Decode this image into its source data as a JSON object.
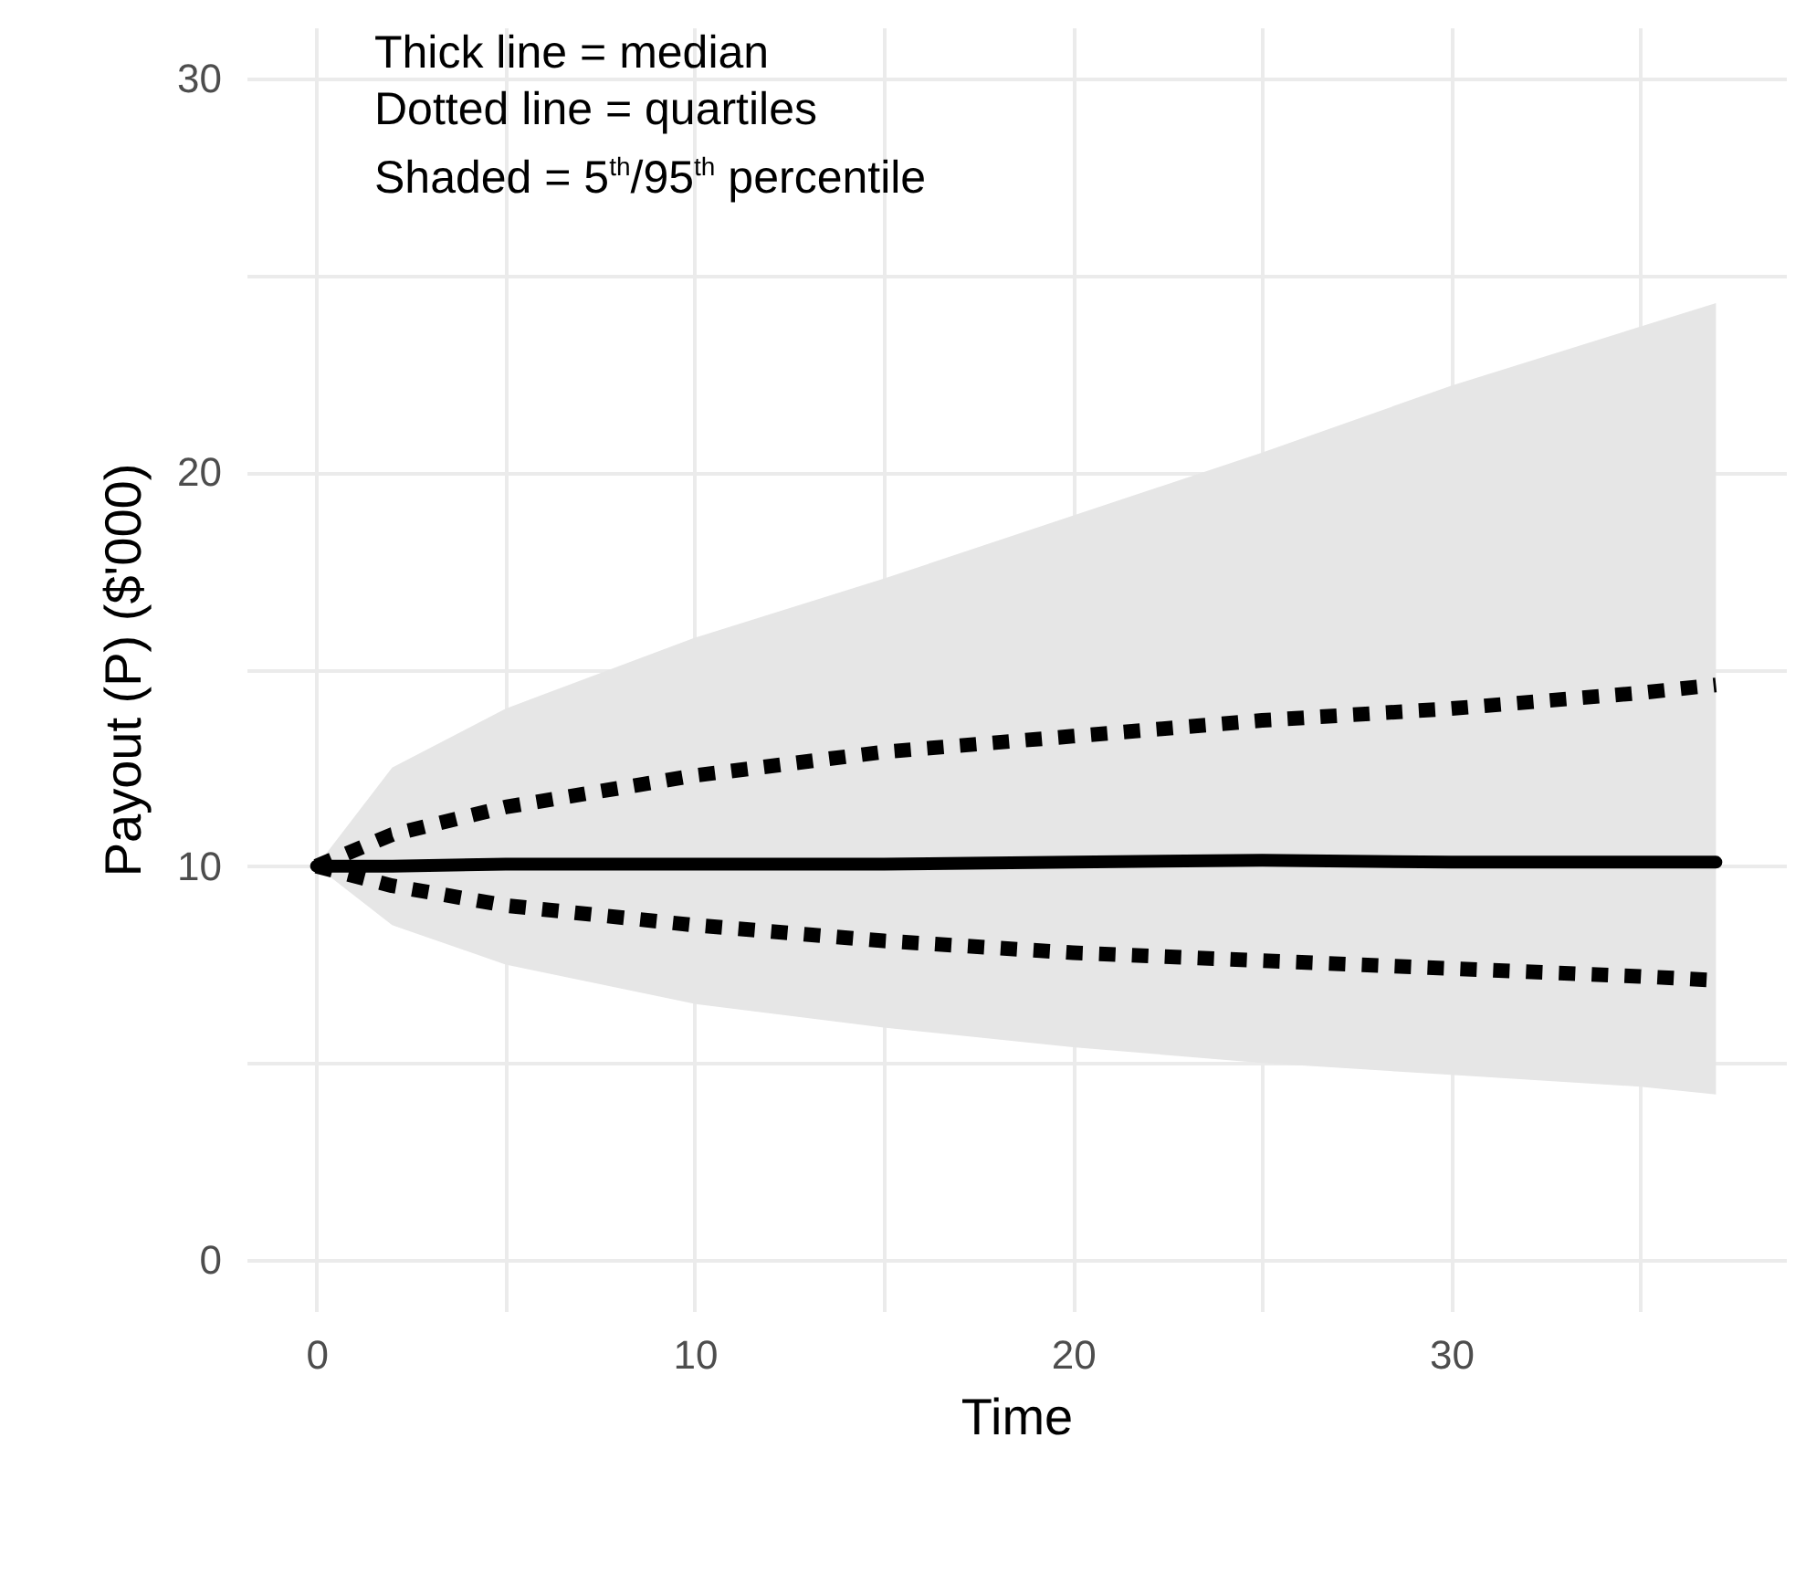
{
  "chart_data": {
    "type": "line",
    "xlabel": "Time",
    "ylabel": "Payout (P) ($'000)",
    "annotations": [
      "Thick line = median",
      "Dotted line = quartiles",
      "Shaded = 5$^{th}$/95$^{th}$ percentile"
    ],
    "x": [
      0,
      2,
      5,
      10,
      15,
      20,
      25,
      30,
      35,
      37
    ],
    "series": [
      {
        "color": "#000000",
        "line_style": "solid",
        "values": [
          10,
          10,
          10.05,
          10.05,
          10.05,
          10.1,
          10.15,
          10.1,
          10.1,
          10.1
        ],
        "lower": [
          10,
          8.5,
          7.5,
          6.5,
          5.9,
          5.4,
          5,
          4.7,
          4.4,
          4.2
        ],
        "upper": [
          10,
          12.5,
          14,
          15.8,
          17.3,
          18.9,
          20.5,
          22.2,
          23.7,
          24.3
        ]
      },
      {
        "color": "#000000",
        "line_style": "dotted",
        "values": [
          10,
          10.8,
          11.5,
          12.3,
          12.9,
          13.3,
          13.7,
          14,
          14.4,
          14.6
        ]
      },
      {
        "color": "#000000",
        "line_style": "dotted",
        "values": [
          10,
          9.5,
          9,
          8.5,
          8.1,
          7.8,
          7.6,
          7.4,
          7.2,
          7.1
        ]
      }
    ],
    "xlim": [
      -1.85,
      38.85
    ],
    "ylim": [
      -1.3,
      31.3
    ],
    "xticks": [
      0,
      {
        "value": 5,
        "label": null
      },
      10,
      {
        "value": 15,
        "label": null
      },
      20,
      {
        "value": 25,
        "label": null
      },
      30,
      {
        "value": 35,
        "label": null
      }
    ],
    "yticks": [
      0,
      {
        "value": 5,
        "label": null
      },
      10,
      {
        "value": 15,
        "label": null
      },
      20,
      {
        "value": 25,
        "label": null
      },
      30
    ],
    "grid": true
  }
}
